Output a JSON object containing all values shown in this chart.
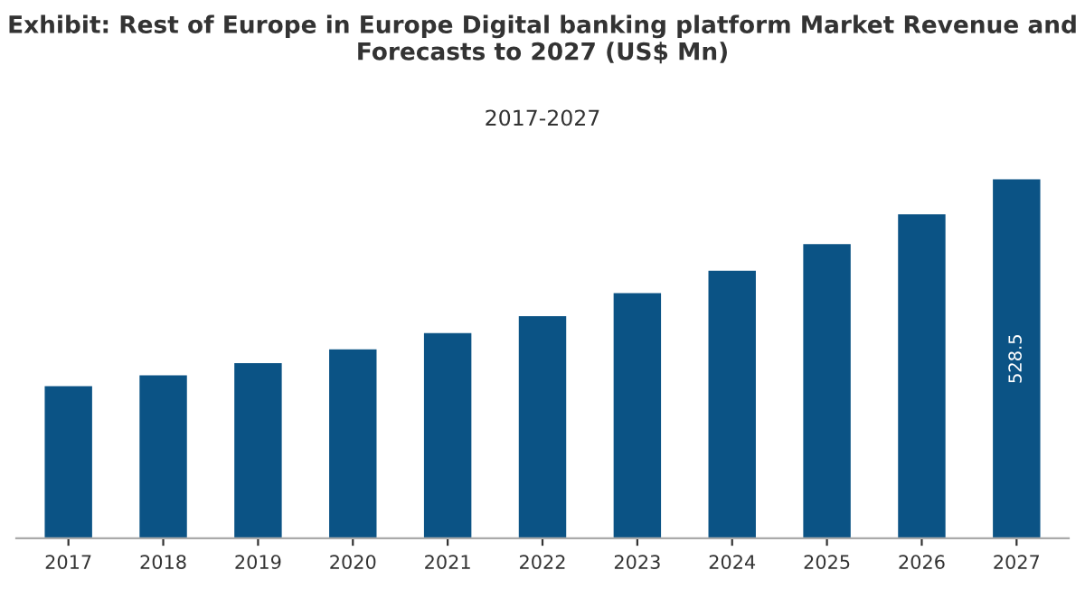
{
  "chart_data": {
    "type": "bar",
    "title": "Exhibit: Rest of Europe in Europe Digital banking platform Market Revenue and Forecasts to 2027 (US$ Mn)",
    "subtitle": "2017-2027",
    "categories": [
      "2017",
      "2018",
      "2019",
      "2020",
      "2021",
      "2022",
      "2023",
      "2024",
      "2025",
      "2026",
      "2027"
    ],
    "values": [
      224,
      240,
      258,
      278,
      302,
      327,
      361,
      394,
      433,
      477,
      528.5
    ],
    "value_labels": [
      null,
      null,
      null,
      null,
      null,
      null,
      null,
      null,
      null,
      null,
      "528.5"
    ],
    "color": "#0b5385",
    "grid": false,
    "legend": false
  }
}
